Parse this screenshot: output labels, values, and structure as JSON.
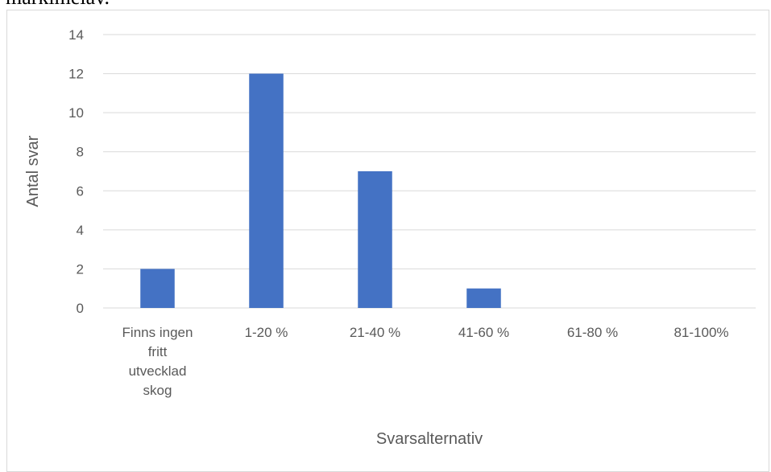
{
  "document": {
    "clipped_text": "markimelav."
  },
  "chart_data": {
    "type": "bar",
    "categories": [
      "Finns ingen fritt utvecklad skog",
      "1-20 %",
      "21-40 %",
      "41-60 %",
      "61-80 %",
      "81-100%"
    ],
    "category_label_lines": [
      [
        "Finns ingen",
        "fritt",
        "utvecklad",
        "skog"
      ],
      [
        "1-20 %"
      ],
      [
        "21-40 %"
      ],
      [
        "41-60 %"
      ],
      [
        "61-80 %"
      ],
      [
        "81-100%"
      ]
    ],
    "values": [
      2,
      12,
      7,
      1,
      0,
      0
    ],
    "title": "",
    "xlabel": "Svarsalternativ",
    "ylabel": "Antal svar",
    "ylim": [
      0,
      14
    ],
    "yticks": [
      0,
      2,
      4,
      6,
      8,
      10,
      12,
      14
    ],
    "grid": true,
    "legend": "none",
    "colors": {
      "bar": "#4472c4",
      "gridline": "#d9d9d9",
      "axis_line": "#d9d9d9",
      "text": "#595959"
    }
  }
}
